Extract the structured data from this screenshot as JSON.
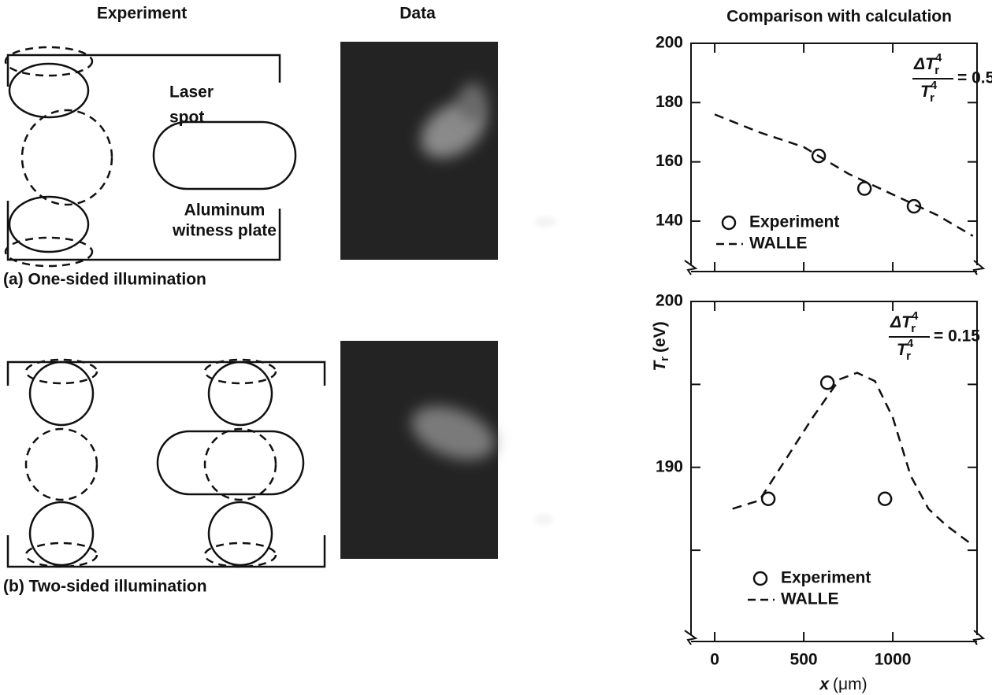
{
  "headers": {
    "experiment": "Experiment",
    "data": "Data",
    "comparison": "Comparison with calculation"
  },
  "panels": [
    {
      "caption": "(a) One-sided illumination",
      "laser_label": [
        "Laser",
        "spot"
      ],
      "plate_label": [
        "Aluminum",
        "witness plate"
      ]
    },
    {
      "caption": "(b) Two-sided illumination"
    }
  ],
  "chart_data": [
    {
      "type": "line",
      "xlim": [
        -133,
        1473
      ],
      "ylim": [
        123,
        200
      ],
      "yticks": [
        140,
        160,
        180,
        200
      ],
      "annotation": {
        "numerator": "ΔT",
        "denominator": "T",
        "subscript": "r",
        "superscript": "4",
        "equals": "= 0.5"
      },
      "series": [
        {
          "name": "Experiment",
          "style": "markers",
          "color": "#111111",
          "x": [
            584,
            841,
            1119
          ],
          "values": [
            162,
            151,
            145
          ]
        },
        {
          "name": "WALLE",
          "style": "dashed",
          "color": "#111111",
          "x": [
            0,
            250,
            500,
            750,
            1000,
            1250,
            1450
          ],
          "values": [
            176,
            170,
            165,
            156,
            149,
            142,
            135
          ]
        }
      ]
    },
    {
      "type": "line",
      "xlim": [
        -133,
        1473
      ],
      "ylim": [
        179.5,
        200
      ],
      "yticks": [
        190,
        200
      ],
      "minor_yticks": [
        185,
        195
      ],
      "xticks": [
        0,
        500,
        1000
      ],
      "xlabel": {
        "symbol": "x",
        "unit": "(μm)"
      },
      "ylabel": {
        "symbol": "T",
        "subscript": "r",
        "unit": "(eV)"
      },
      "annotation": {
        "numerator": "ΔT",
        "denominator": "T",
        "subscript": "r",
        "superscript": "4",
        "equals": "= 0.15"
      },
      "series": [
        {
          "name": "Experiment",
          "style": "markers",
          "color": "#111111",
          "x": [
            301,
            633,
            956
          ],
          "values": [
            188.1,
            195.1,
            188.1
          ]
        },
        {
          "name": "WALLE",
          "style": "dashed",
          "color": "#111111",
          "x": [
            100,
            250,
            400,
            550,
            700,
            800,
            900,
            1000,
            1100,
            1200,
            1300,
            1450
          ],
          "values": [
            187.5,
            188,
            190.5,
            193,
            195.3,
            195.7,
            195.2,
            193,
            189.5,
            187.5,
            186.5,
            185.3
          ]
        }
      ]
    }
  ]
}
